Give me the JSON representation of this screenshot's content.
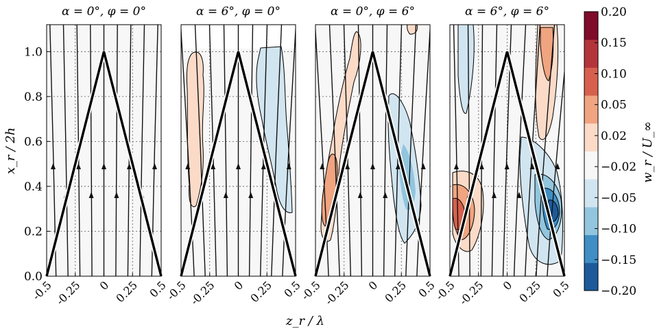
{
  "chart_data": {
    "type": "heatmap",
    "panels": [
      {
        "title": "α = 0°, φ = 0°"
      },
      {
        "title": "α = 6°, φ = 0°"
      },
      {
        "title": "α = 0°, φ = 6°"
      },
      {
        "title": "α = 6°, φ = 6°"
      }
    ],
    "xlabel": "z_r / λ",
    "ylabel": "x_r / 2h",
    "xlim": [
      -0.5,
      0.5
    ],
    "ylim": [
      0.0,
      1.12
    ],
    "x_ticks": [
      "-0.5",
      "-0.25",
      "0",
      "0.25",
      "0.5"
    ],
    "x_tick_values": [
      -0.5,
      -0.25,
      0,
      0.25,
      0.5
    ],
    "y_ticks": [
      "0.0",
      "0.2",
      "0.4",
      "0.6",
      "0.8",
      "1.0"
    ],
    "y_tick_values": [
      0.0,
      0.2,
      0.4,
      0.6,
      0.8,
      1.0
    ],
    "grid": true,
    "colorbar": {
      "label": "w_r / U_∞",
      "levels": [
        -0.2,
        -0.15,
        -0.1,
        -0.05,
        -0.02,
        0.02,
        0.05,
        0.1,
        0.15,
        0.2
      ],
      "tick_labels": [
        "−0.20",
        "−0.15",
        "−0.10",
        "−0.05",
        "−0.02",
        "0.02",
        "0.05",
        "0.10",
        "0.15",
        "0.20"
      ],
      "colors": [
        "#1c5a99",
        "#3f8ec4",
        "#92c5de",
        "#d1e5f0",
        "#f7f7f7",
        "#fbdbc8",
        "#f0a480",
        "#d6604d",
        "#b4343c",
        "#7e0c2a"
      ]
    },
    "triangle_apex": [
      0,
      1.0
    ],
    "triangle_base": [
      [
        -0.5,
        0.0
      ],
      [
        0.5,
        0.0
      ]
    ]
  }
}
